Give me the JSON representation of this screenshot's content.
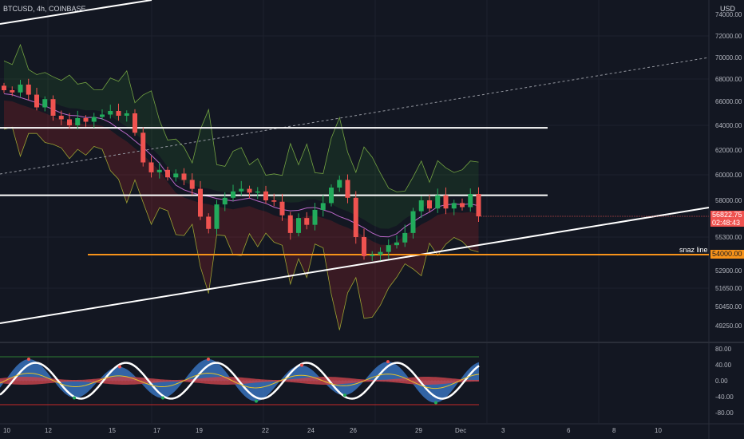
{
  "header": {
    "symbol_title": "BTCUSD, 4h, COINBASE",
    "currency": "USD"
  },
  "colors": {
    "background": "#131722",
    "up": "#26a69a",
    "up_bright": "#22ab5c",
    "down": "#ef5350",
    "support_line": "#f7931a",
    "white_line": "#ffffff",
    "grid": "#1e222d",
    "osc_area": "#3d7fd1",
    "osc_red": "#c2424a"
  },
  "price_axis": {
    "ticks": [
      "74000.00",
      "72000.00",
      "70000.00",
      "68000.00",
      "66000.00",
      "64000.00",
      "62000.00",
      "60000.00",
      "58000.00",
      "55300.00",
      "52900.00",
      "51650.00",
      "50450.00",
      "49250.00"
    ],
    "current_price": "56822.75",
    "countdown": "02:48:43",
    "support_price": "54000.00",
    "support_label": "snaz line"
  },
  "oscillator_axis": {
    "ticks": [
      "80.00",
      "40.00",
      "0.00",
      "-40.00",
      "-80.00"
    ]
  },
  "date_axis": {
    "labels": [
      "10",
      "12",
      "15",
      "17",
      "19",
      "22",
      "24",
      "26",
      "29",
      "Dec",
      "3",
      "6",
      "8",
      "10"
    ]
  },
  "chart_data": {
    "type": "candlestick",
    "symbol": "BTCUSD",
    "interval": "4h",
    "exchange": "COINBASE",
    "y_range": [
      48500,
      75000
    ],
    "horizontal_levels": [
      63800,
      58400,
      54000
    ],
    "last_price": 56822.75,
    "close_path": [
      [
        0,
        67000
      ],
      [
        1,
        66800
      ],
      [
        2,
        67500
      ],
      [
        3,
        66600
      ],
      [
        4,
        65500
      ],
      [
        5,
        66200
      ],
      [
        6,
        64800
      ],
      [
        7,
        64500
      ],
      [
        8,
        64000
      ],
      [
        9,
        64600
      ],
      [
        10,
        64300
      ],
      [
        11,
        64700
      ],
      [
        12,
        64900
      ],
      [
        13,
        65200
      ],
      [
        14,
        64800
      ],
      [
        15,
        65000
      ],
      [
        16,
        63400
      ],
      [
        17,
        61000
      ],
      [
        18,
        60200
      ],
      [
        19,
        60400
      ],
      [
        20,
        59800
      ],
      [
        21,
        60100
      ],
      [
        22,
        59600
      ],
      [
        23,
        58900
      ],
      [
        24,
        56800
      ],
      [
        25,
        55900
      ],
      [
        26,
        57700
      ],
      [
        27,
        58200
      ],
      [
        28,
        58700
      ],
      [
        29,
        58900
      ],
      [
        30,
        58600
      ],
      [
        31,
        58700
      ],
      [
        32,
        58000
      ],
      [
        33,
        57900
      ],
      [
        34,
        56900
      ],
      [
        35,
        55600
      ],
      [
        36,
        56700
      ],
      [
        37,
        56200
      ],
      [
        38,
        57300
      ],
      [
        39,
        57800
      ],
      [
        40,
        59000
      ],
      [
        41,
        59600
      ],
      [
        42,
        58200
      ],
      [
        43,
        55300
      ],
      [
        44,
        53900
      ],
      [
        45,
        54000
      ],
      [
        46,
        54200
      ],
      [
        47,
        54700
      ],
      [
        48,
        54900
      ],
      [
        49,
        55600
      ],
      [
        50,
        57200
      ],
      [
        51,
        58000
      ],
      [
        52,
        57400
      ],
      [
        53,
        58400
      ],
      [
        54,
        57400
      ],
      [
        55,
        57800
      ],
      [
        56,
        57500
      ],
      [
        57,
        58500
      ],
      [
        58,
        56822.75
      ]
    ]
  }
}
